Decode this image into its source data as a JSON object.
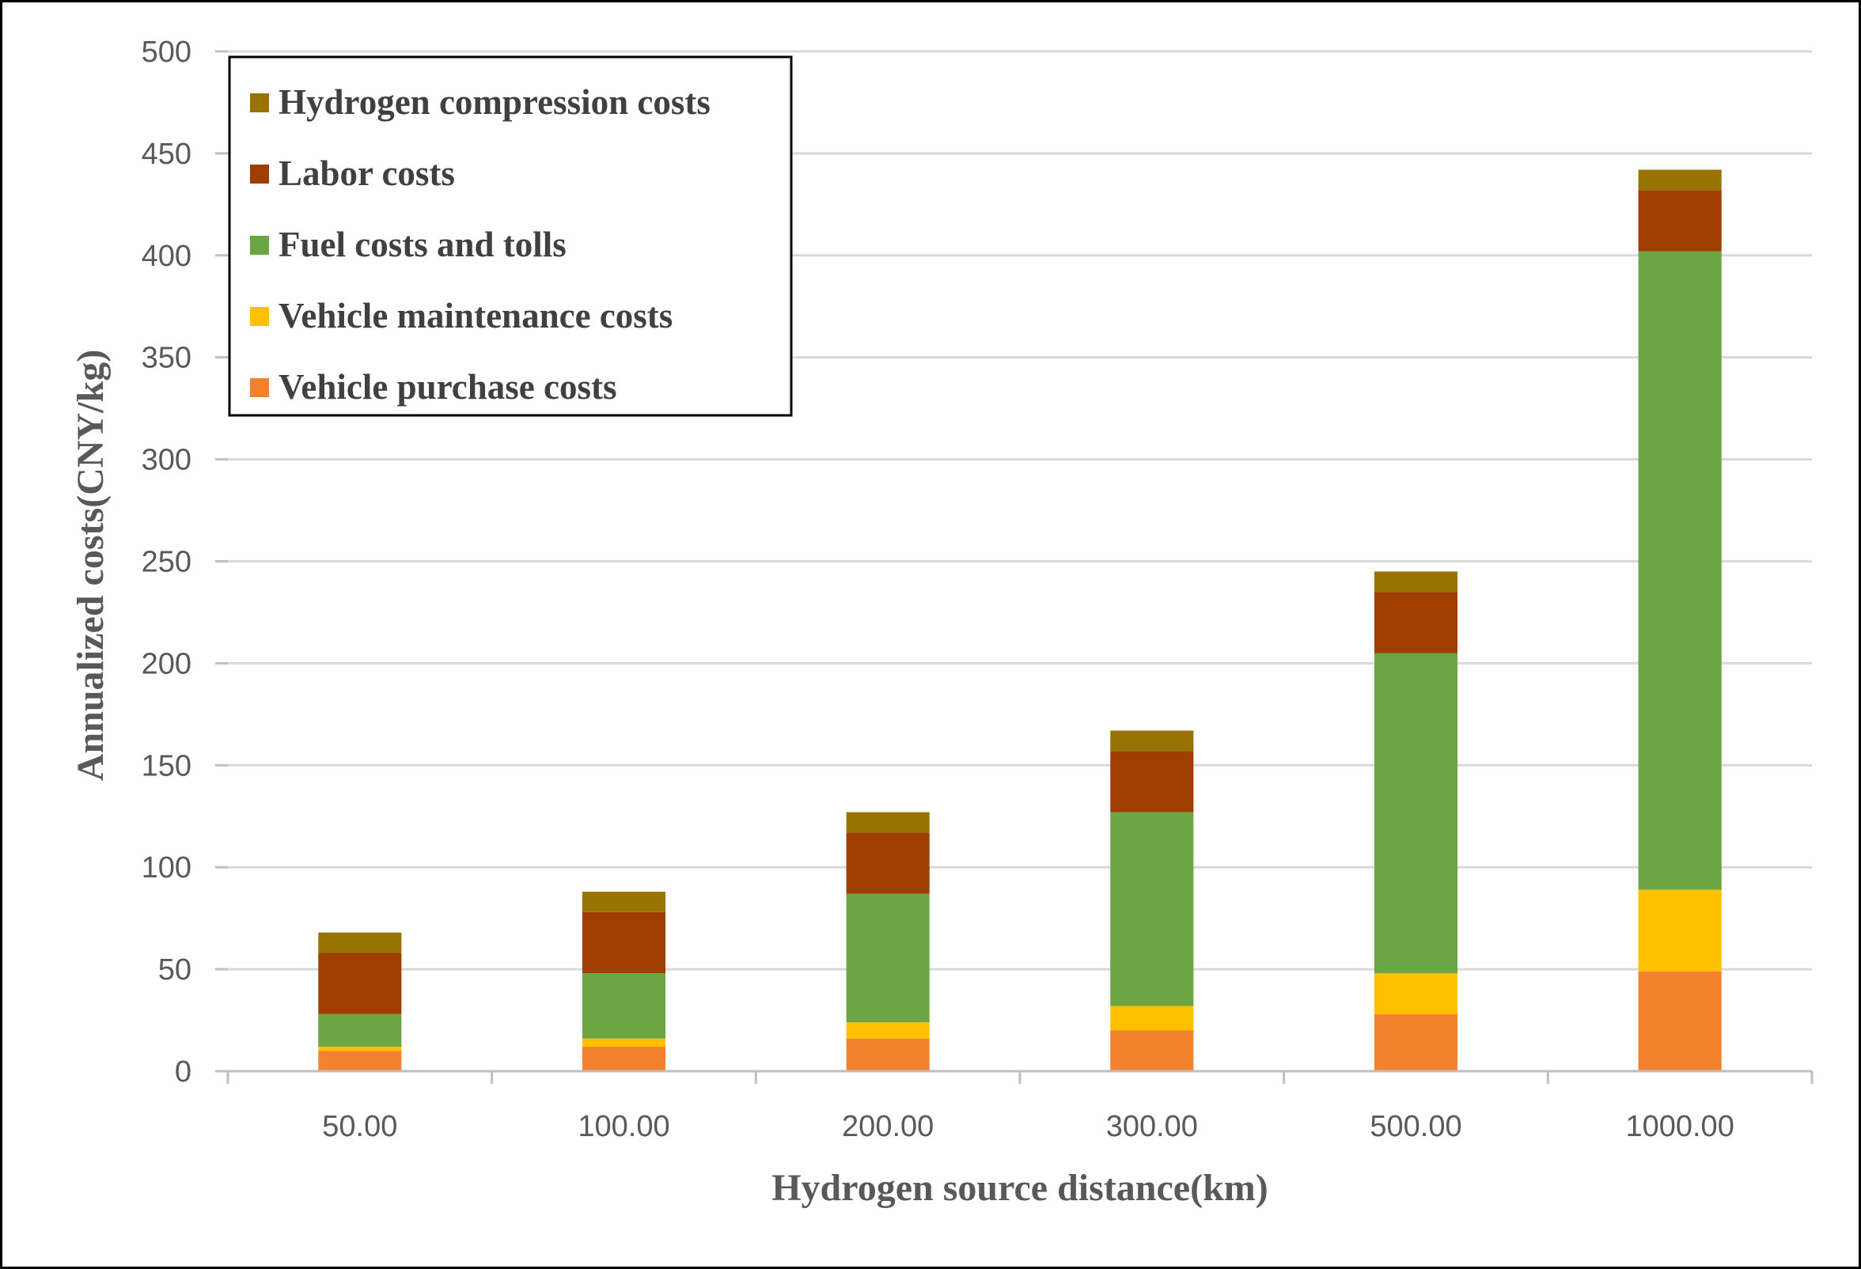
{
  "chart_data": {
    "type": "bar",
    "stacked": true,
    "title": "",
    "xlabel": "Hydrogen source distance(km)",
    "ylabel": "Annualized  costs(CNY/kg)",
    "ylim": [
      0,
      500
    ],
    "yticks": [
      "0",
      "50",
      "100",
      "150",
      "200",
      "250",
      "300",
      "350",
      "400",
      "450",
      "500"
    ],
    "categories": [
      "50.00",
      "100.00",
      "200.00",
      "300.00",
      "500.00",
      "1000.00"
    ],
    "grid": "horizontal",
    "legend_position": "top-left",
    "series": [
      {
        "name": "Vehicle purchase costs",
        "color": "#F4812D",
        "values": [
          10,
          12,
          16,
          20,
          28,
          49
        ]
      },
      {
        "name": "Vehicle maintenance costs",
        "color": "#FFC000",
        "values": [
          2,
          4,
          8,
          12,
          20,
          40
        ]
      },
      {
        "name": "Fuel costs and tolls",
        "color": "#6BA544",
        "values": [
          16,
          32,
          63,
          95,
          157,
          313
        ]
      },
      {
        "name": "Labor costs",
        "color": "#9E3E00",
        "values": [
          30,
          30,
          30,
          30,
          30,
          30
        ]
      },
      {
        "name": "Hydrogen compression costs",
        "color": "#997300",
        "values": [
          10,
          10,
          10,
          10,
          10,
          10
        ]
      }
    ],
    "legend_order": [
      "Hydrogen compression costs",
      "Labor costs",
      "Fuel costs and tolls",
      "Vehicle maintenance costs",
      "Vehicle purchase costs"
    ]
  }
}
